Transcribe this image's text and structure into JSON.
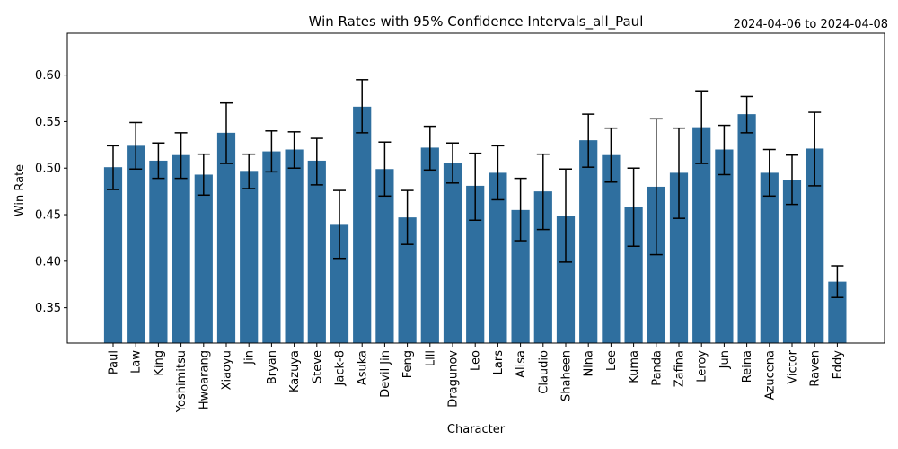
{
  "chart_data": {
    "type": "bar",
    "title": "Win Rates with 95% Confidence Intervals_all_Paul",
    "date_range": "2024-04-06 to 2024-04-08",
    "xlabel": "Character",
    "ylabel": "Win Rate",
    "ylim": [
      0.312,
      0.645
    ],
    "yticks": [
      0.35,
      0.4,
      0.45,
      0.5,
      0.55,
      0.6
    ],
    "ytick_labels": [
      "0.35",
      "0.40",
      "0.45",
      "0.50",
      "0.55",
      "0.60"
    ],
    "bar_color": "#2f6f9f",
    "grid": false,
    "categories": [
      "Paul",
      "Law",
      "King",
      "Yoshimitsu",
      "Hwoarang",
      "Xiaoyu",
      "Jin",
      "Bryan",
      "Kazuya",
      "Steve",
      "Jack-8",
      "Asuka",
      "Devil Jin",
      "Feng",
      "Lili",
      "Dragunov",
      "Leo",
      "Lars",
      "Alisa",
      "Claudio",
      "Shaheen",
      "Nina",
      "Lee",
      "Kuma",
      "Panda",
      "Zafina",
      "Leroy",
      "Jun",
      "Reina",
      "Azucena",
      "Victor",
      "Raven",
      "Eddy"
    ],
    "values": [
      0.501,
      0.524,
      0.508,
      0.514,
      0.493,
      0.538,
      0.497,
      0.518,
      0.52,
      0.508,
      0.44,
      0.566,
      0.499,
      0.447,
      0.522,
      0.506,
      0.481,
      0.495,
      0.455,
      0.475,
      0.449,
      0.53,
      0.514,
      0.458,
      0.48,
      0.495,
      0.544,
      0.52,
      0.558,
      0.495,
      0.487,
      0.521,
      0.378
    ],
    "ci_low": [
      0.477,
      0.499,
      0.489,
      0.489,
      0.471,
      0.505,
      0.478,
      0.496,
      0.5,
      0.482,
      0.403,
      0.538,
      0.47,
      0.418,
      0.498,
      0.484,
      0.444,
      0.466,
      0.422,
      0.434,
      0.399,
      0.501,
      0.485,
      0.416,
      0.407,
      0.446,
      0.505,
      0.493,
      0.538,
      0.47,
      0.461,
      0.481,
      0.361
    ],
    "ci_high": [
      0.524,
      0.549,
      0.527,
      0.538,
      0.515,
      0.57,
      0.515,
      0.54,
      0.539,
      0.532,
      0.476,
      0.595,
      0.528,
      0.476,
      0.545,
      0.527,
      0.516,
      0.524,
      0.489,
      0.515,
      0.499,
      0.558,
      0.543,
      0.5,
      0.553,
      0.543,
      0.583,
      0.546,
      0.577,
      0.52,
      0.514,
      0.56,
      0.395
    ]
  }
}
